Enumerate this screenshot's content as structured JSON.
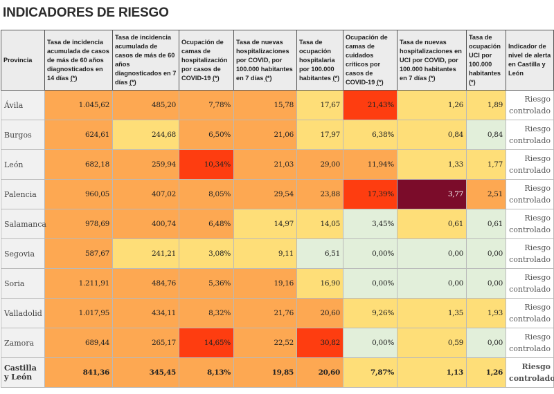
{
  "page_title": "INDICADORES DE RIESGO",
  "colors": {
    "orange": "#fda852",
    "yellow": "#fede78",
    "green": "#e2efda",
    "red": "#fe3d10",
    "maroon": "#7b0c2a",
    "header_bg": "#ececec"
  },
  "table": {
    "headers": [
      {
        "label": "Provincia",
        "note": ""
      },
      {
        "label": "Tasa de incidencia acumulada de casos de más de 60 años diagnosticados en 14 días ",
        "note": "(*)"
      },
      {
        "label": "Tasa de incidencia acumulada de casos de más de 60 años diagnosticados en 7 días ",
        "note": "(*)"
      },
      {
        "label": "Ocupación de camas de hospitalización por casos de COVID-19 ",
        "note": "(*)"
      },
      {
        "label": "Tasa de nuevas hospitalizaciones por COVID, por 100.000 habitantes en 7 días ",
        "note": "(*)"
      },
      {
        "label": "Tasa de ocupación hospitalaria por 100.000 habitantes ",
        "note": "(*)"
      },
      {
        "label": "Ocupación de camas de cuidados críticos por casos de COVID-19 ",
        "note": "(*)"
      },
      {
        "label": "Tasa de nuevas hospitalizaciones en UCI por COVID, por 100.000 habitantes en 7 días ",
        "note": "(*)"
      },
      {
        "label": "Tasa de ocupación UCI por 100.000 habitantes ",
        "note": "(*)"
      },
      {
        "label": "Indicador de nivel de alerta en Castilla y León",
        "note": ""
      }
    ],
    "rows": [
      {
        "provincia": "Ávila",
        "values": [
          "1.045,62",
          "485,20",
          "7,78%",
          "15,78",
          "17,67",
          "21,43%",
          "1,26",
          "1,89"
        ],
        "levels": [
          "orange",
          "orange",
          "orange",
          "orange",
          "yellow",
          "red",
          "yellow",
          "yellow"
        ],
        "alert": "Riesgo controlado"
      },
      {
        "provincia": "Burgos",
        "values": [
          "624,61",
          "244,68",
          "6,50%",
          "21,06",
          "17,97",
          "6,38%",
          "0,84",
          "0,84"
        ],
        "levels": [
          "orange",
          "yellow",
          "orange",
          "orange",
          "yellow",
          "yellow",
          "yellow",
          "green"
        ],
        "alert": "Riesgo controlado"
      },
      {
        "provincia": "León",
        "values": [
          "682,18",
          "259,94",
          "10,34%",
          "21,03",
          "29,00",
          "11,94%",
          "1,33",
          "1,77"
        ],
        "levels": [
          "orange",
          "orange",
          "red",
          "orange",
          "orange",
          "orange",
          "yellow",
          "yellow"
        ],
        "alert": "Riesgo controlado"
      },
      {
        "provincia": "Palencia",
        "values": [
          "960,05",
          "407,02",
          "8,05%",
          "29,54",
          "23,88",
          "17,39%",
          "3,77",
          "2,51"
        ],
        "levels": [
          "orange",
          "orange",
          "orange",
          "orange",
          "orange",
          "red",
          "maroon",
          "orange"
        ],
        "alert": "Riesgo controlado"
      },
      {
        "provincia": "Salamanca",
        "values": [
          "978,69",
          "400,74",
          "6,48%",
          "14,97",
          "14,05",
          "3,45%",
          "0,61",
          "0,61"
        ],
        "levels": [
          "orange",
          "orange",
          "orange",
          "yellow",
          "yellow",
          "green",
          "yellow",
          "green"
        ],
        "alert": "Riesgo controlado"
      },
      {
        "provincia": "Segovia",
        "values": [
          "587,67",
          "241,21",
          "3,08%",
          "9,11",
          "6,51",
          "0,00%",
          "0,00",
          "0,00"
        ],
        "levels": [
          "orange",
          "yellow",
          "yellow",
          "yellow",
          "green",
          "green",
          "green",
          "green"
        ],
        "alert": "Riesgo controlado"
      },
      {
        "provincia": "Soria",
        "values": [
          "1.211,91",
          "484,76",
          "5,36%",
          "19,16",
          "16,90",
          "0,00%",
          "0,00",
          "0,00"
        ],
        "levels": [
          "orange",
          "orange",
          "orange",
          "orange",
          "yellow",
          "green",
          "green",
          "green"
        ],
        "alert": "Riesgo controlado"
      },
      {
        "provincia": "Valladolid",
        "values": [
          "1.017,95",
          "434,11",
          "8,32%",
          "21,76",
          "20,60",
          "9,26%",
          "1,35",
          "1,93"
        ],
        "levels": [
          "orange",
          "orange",
          "orange",
          "orange",
          "orange",
          "yellow",
          "yellow",
          "yellow"
        ],
        "alert": "Riesgo controlado"
      },
      {
        "provincia": "Zamora",
        "values": [
          "689,44",
          "265,17",
          "14,65%",
          "22,52",
          "30,82",
          "0,00%",
          "0,59",
          "0,00"
        ],
        "levels": [
          "orange",
          "orange",
          "red",
          "orange",
          "red",
          "green",
          "yellow",
          "green"
        ],
        "alert": "Riesgo controlado"
      }
    ],
    "total": {
      "provincia": "Castilla y León",
      "values": [
        "841,36",
        "345,45",
        "8,13%",
        "19,85",
        "20,60",
        "7,87%",
        "1,13",
        "1,26"
      ],
      "levels": [
        "orange",
        "orange",
        "orange",
        "orange",
        "orange",
        "yellow",
        "yellow",
        "yellow"
      ],
      "alert": "Riesgo controlado"
    }
  }
}
